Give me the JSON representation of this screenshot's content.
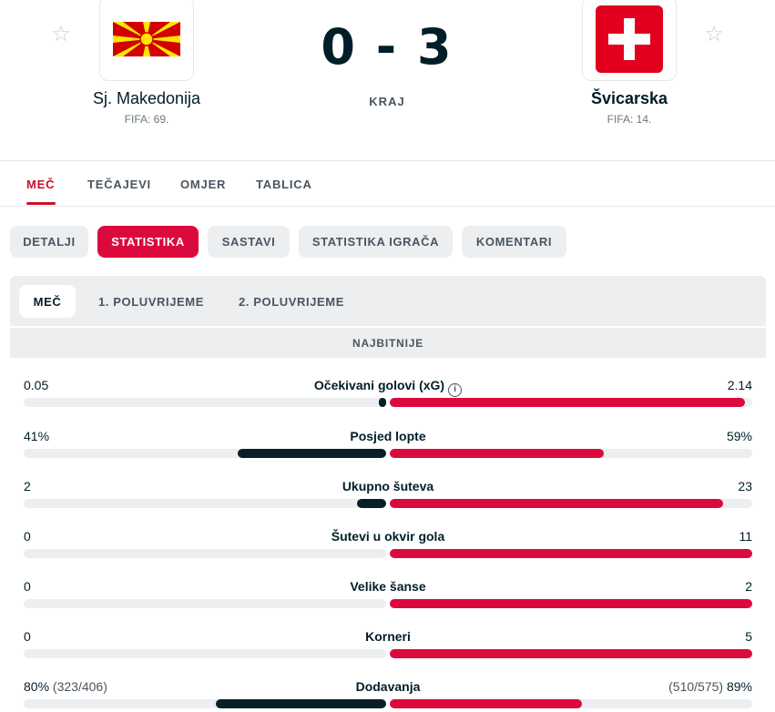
{
  "match": {
    "home": {
      "name": "Sj. Makedonija",
      "fifa": "FIFA: 69."
    },
    "away": {
      "name": "Švicarska",
      "fifa": "FIFA: 14."
    },
    "score": "0 - 3",
    "status": "KRAJ"
  },
  "main_tabs": [
    "MEČ",
    "TEČAJEVI",
    "OMJER",
    "TABLICA"
  ],
  "sub_tabs": [
    "DETALJI",
    "STATISTIKA",
    "SASTAVI",
    "STATISTIKA IGRAČA",
    "KOMENTARI"
  ],
  "period_tabs": [
    "MEČ",
    "1. POLUVRIJEME",
    "2. POLUVRIJEME"
  ],
  "section_title": "NAJBITNIJE",
  "colors": {
    "accent": "#dc0a3c",
    "home_bar": "#0a1e28",
    "track": "#eceef0"
  },
  "stats": [
    {
      "label": "Očekivani golovi (xG)",
      "home": "0.05",
      "away": "2.14",
      "home_fill": 0.02,
      "away_fill": 0.98,
      "info": true
    },
    {
      "label": "Posjed lopte",
      "home": "41%",
      "away": "59%",
      "home_fill": 0.41,
      "away_fill": 0.59
    },
    {
      "label": "Ukupno šuteva",
      "home": "2",
      "away": "23",
      "home_fill": 0.08,
      "away_fill": 0.92
    },
    {
      "label": "Šutevi u okvir gola",
      "home": "0",
      "away": "11",
      "home_fill": 0.0,
      "away_fill": 1.0
    },
    {
      "label": "Velike šanse",
      "home": "0",
      "away": "2",
      "home_fill": 0.0,
      "away_fill": 1.0
    },
    {
      "label": "Korneri",
      "home": "0",
      "away": "5",
      "home_fill": 0.0,
      "away_fill": 1.0
    },
    {
      "label": "Dodavanja",
      "home": "80%",
      "home_detail": "(323/406)",
      "away": "89%",
      "away_detail": "(510/575)",
      "home_fill": 0.47,
      "away_fill": 0.53
    }
  ]
}
